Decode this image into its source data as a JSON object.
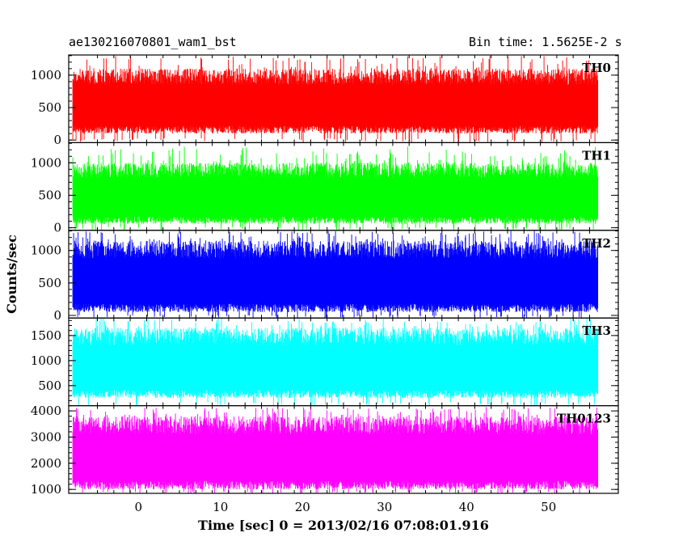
{
  "header": {
    "title": "ae130216070801_wam1_bst",
    "bin_time": "Bin time: 1.5625E-2 s"
  },
  "chart_data": {
    "type": "line",
    "xlabel": "Time [sec] 0 = 2013/02/16 07:08:01.916",
    "ylabel": "Counts/sec",
    "xlim": [
      -8.5,
      58.5
    ],
    "x_ticks": [
      0,
      10,
      20,
      30,
      40,
      50
    ],
    "x_data_range": [
      -8.0,
      56.0
    ],
    "grid": false,
    "panels": [
      {
        "name": "TH0",
        "color": "#ff0000",
        "ylim": [
          -40,
          1310
        ],
        "yticks": [
          0,
          500,
          1000
        ],
        "typical_range": [
          100,
          1100
        ],
        "peak_max": 1300
      },
      {
        "name": "TH1",
        "color": "#00ff00",
        "ylim": [
          -40,
          1310
        ],
        "yticks": [
          0,
          500,
          1000
        ],
        "typical_range": [
          60,
          1000
        ],
        "peak_max": 1250
      },
      {
        "name": "TH2",
        "color": "#0000ff",
        "ylim": [
          -40,
          1310
        ],
        "yticks": [
          0,
          500,
          1000
        ],
        "typical_range": [
          50,
          1150
        ],
        "peak_max": 1300
      },
      {
        "name": "TH3",
        "color": "#00ffff",
        "ylim": [
          100,
          1850
        ],
        "yticks": [
          500,
          1000,
          1500
        ],
        "typical_range": [
          250,
          1650
        ],
        "peak_max": 1850
      },
      {
        "name": "TH0123",
        "color": "#ff00ff",
        "ylim": [
          850,
          4200
        ],
        "yticks": [
          1000,
          2000,
          3000,
          4000
        ],
        "typical_range": [
          1000,
          3800
        ],
        "peak_max": 4150
      }
    ]
  }
}
